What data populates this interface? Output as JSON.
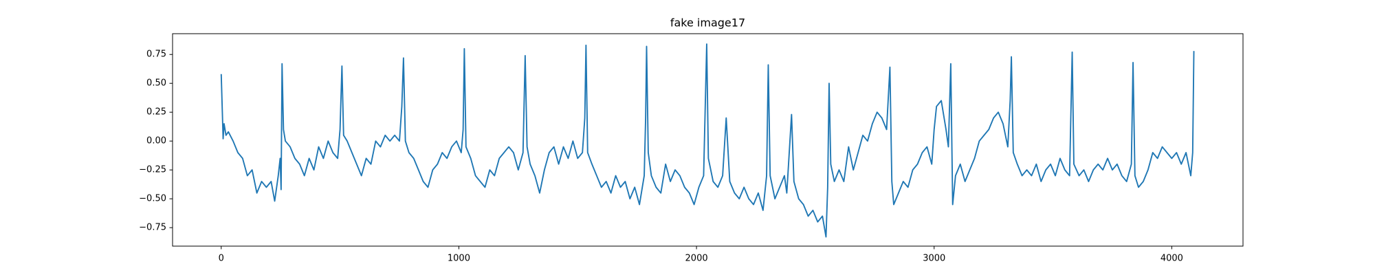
{
  "chart_data": {
    "type": "line",
    "title": "fake image17",
    "color": "#1f77b4",
    "x": [
      0,
      8,
      12,
      20,
      30,
      50,
      70,
      90,
      110,
      130,
      150,
      170,
      190,
      210,
      225,
      240,
      248,
      252,
      256,
      262,
      270,
      290,
      310,
      330,
      350,
      370,
      390,
      410,
      430,
      450,
      470,
      490,
      500,
      508,
      515,
      530,
      550,
      570,
      590,
      610,
      630,
      650,
      670,
      690,
      710,
      730,
      750,
      760,
      767,
      775,
      790,
      810,
      830,
      850,
      870,
      890,
      910,
      930,
      950,
      970,
      990,
      1010,
      1018,
      1023,
      1030,
      1050,
      1070,
      1090,
      1110,
      1130,
      1150,
      1170,
      1190,
      1210,
      1230,
      1250,
      1270,
      1279,
      1287,
      1300,
      1320,
      1340,
      1360,
      1380,
      1400,
      1420,
      1440,
      1460,
      1480,
      1500,
      1520,
      1530,
      1535,
      1542,
      1560,
      1580,
      1600,
      1620,
      1640,
      1660,
      1680,
      1700,
      1720,
      1740,
      1760,
      1780,
      1786,
      1790,
      1797,
      1810,
      1830,
      1850,
      1870,
      1890,
      1910,
      1930,
      1950,
      1970,
      1990,
      2010,
      2030,
      2043,
      2050,
      2070,
      2090,
      2110,
      2125,
      2140,
      2160,
      2180,
      2200,
      2220,
      2240,
      2260,
      2280,
      2295,
      2302,
      2310,
      2330,
      2350,
      2370,
      2380,
      2400,
      2410,
      2430,
      2450,
      2470,
      2490,
      2510,
      2530,
      2545,
      2552,
      2558,
      2565,
      2580,
      2600,
      2620,
      2640,
      2660,
      2680,
      2700,
      2720,
      2740,
      2760,
      2780,
      2800,
      2814,
      2822,
      2830,
      2850,
      2870,
      2890,
      2910,
      2930,
      2950,
      2970,
      2990,
      3000,
      3010,
      3030,
      3050,
      3060,
      3070,
      3078,
      3090,
      3110,
      3130,
      3150,
      3170,
      3190,
      3210,
      3230,
      3250,
      3270,
      3290,
      3310,
      3320,
      3325,
      3333,
      3350,
      3370,
      3390,
      3410,
      3430,
      3450,
      3470,
      3490,
      3510,
      3530,
      3550,
      3570,
      3581,
      3588,
      3610,
      3630,
      3650,
      3670,
      3690,
      3710,
      3730,
      3750,
      3770,
      3790,
      3810,
      3830,
      3837,
      3845,
      3860,
      3880,
      3900,
      3920,
      3940,
      3960,
      3980,
      4000,
      4020,
      4040,
      4060,
      4080,
      4088,
      4093
    ],
    "values": [
      0.58,
      0.02,
      0.15,
      0.05,
      0.08,
      0.0,
      -0.1,
      -0.15,
      -0.3,
      -0.25,
      -0.45,
      -0.35,
      -0.4,
      -0.35,
      -0.52,
      -0.3,
      -0.15,
      -0.42,
      0.67,
      0.1,
      0.0,
      -0.05,
      -0.15,
      -0.2,
      -0.3,
      -0.15,
      -0.25,
      -0.05,
      -0.15,
      0.0,
      -0.1,
      -0.15,
      0.1,
      0.65,
      0.05,
      0.0,
      -0.1,
      -0.2,
      -0.3,
      -0.15,
      -0.2,
      0.0,
      -0.05,
      0.05,
      0.0,
      0.05,
      0.0,
      0.3,
      0.72,
      0.0,
      -0.1,
      -0.15,
      -0.25,
      -0.35,
      -0.4,
      -0.25,
      -0.2,
      -0.1,
      -0.15,
      -0.05,
      0.0,
      -0.1,
      0.1,
      0.8,
      -0.05,
      -0.15,
      -0.3,
      -0.35,
      -0.4,
      -0.25,
      -0.3,
      -0.15,
      -0.1,
      -0.05,
      -0.1,
      -0.25,
      -0.1,
      0.74,
      -0.05,
      -0.2,
      -0.3,
      -0.45,
      -0.25,
      -0.1,
      -0.05,
      -0.2,
      -0.05,
      -0.15,
      0.0,
      -0.15,
      -0.1,
      0.2,
      0.83,
      -0.1,
      -0.2,
      -0.3,
      -0.4,
      -0.35,
      -0.45,
      -0.3,
      -0.4,
      -0.35,
      -0.5,
      -0.4,
      -0.55,
      -0.3,
      0.2,
      0.82,
      -0.1,
      -0.3,
      -0.4,
      -0.45,
      -0.2,
      -0.35,
      -0.25,
      -0.3,
      -0.4,
      -0.45,
      -0.55,
      -0.4,
      -0.3,
      0.84,
      -0.15,
      -0.35,
      -0.4,
      -0.3,
      0.2,
      -0.35,
      -0.45,
      -0.5,
      -0.4,
      -0.5,
      -0.55,
      -0.45,
      -0.6,
      -0.3,
      0.66,
      -0.3,
      -0.5,
      -0.4,
      -0.3,
      -0.45,
      0.23,
      -0.35,
      -0.5,
      -0.55,
      -0.65,
      -0.6,
      -0.7,
      -0.65,
      -0.83,
      -0.4,
      0.5,
      -0.2,
      -0.35,
      -0.25,
      -0.35,
      -0.05,
      -0.25,
      -0.1,
      0.05,
      0.0,
      0.15,
      0.25,
      0.2,
      0.1,
      0.64,
      -0.35,
      -0.55,
      -0.45,
      -0.35,
      -0.4,
      -0.25,
      -0.2,
      -0.1,
      -0.05,
      -0.2,
      0.1,
      0.3,
      0.35,
      0.1,
      -0.05,
      0.67,
      -0.55,
      -0.3,
      -0.2,
      -0.35,
      -0.25,
      -0.15,
      0.0,
      0.05,
      0.1,
      0.2,
      0.25,
      0.15,
      -0.05,
      0.35,
      0.73,
      -0.1,
      -0.2,
      -0.3,
      -0.25,
      -0.3,
      -0.2,
      -0.35,
      -0.25,
      -0.2,
      -0.3,
      -0.15,
      -0.25,
      -0.3,
      0.77,
      -0.2,
      -0.3,
      -0.25,
      -0.35,
      -0.25,
      -0.2,
      -0.25,
      -0.15,
      -0.25,
      -0.2,
      -0.3,
      -0.35,
      -0.2,
      0.68,
      -0.3,
      -0.4,
      -0.35,
      -0.25,
      -0.1,
      -0.15,
      -0.05,
      -0.1,
      -0.15,
      -0.1,
      -0.2,
      -0.1,
      -0.3,
      -0.1,
      0.78
    ],
    "xlim": [
      -204.75,
      4299.75
    ],
    "xticks": [
      0,
      1000,
      2000,
      3000,
      4000
    ],
    "ylim": [
      -0.91,
      0.93
    ],
    "yticks": [
      {
        "value": -0.75,
        "label": "−0.75"
      },
      {
        "value": -0.5,
        "label": "−0.50"
      },
      {
        "value": -0.25,
        "label": "−0.25"
      },
      {
        "value": 0,
        "label": "0.00"
      },
      0.25,
      {
        "value": 0.5,
        "label": "0.50"
      },
      0.75
    ]
  }
}
